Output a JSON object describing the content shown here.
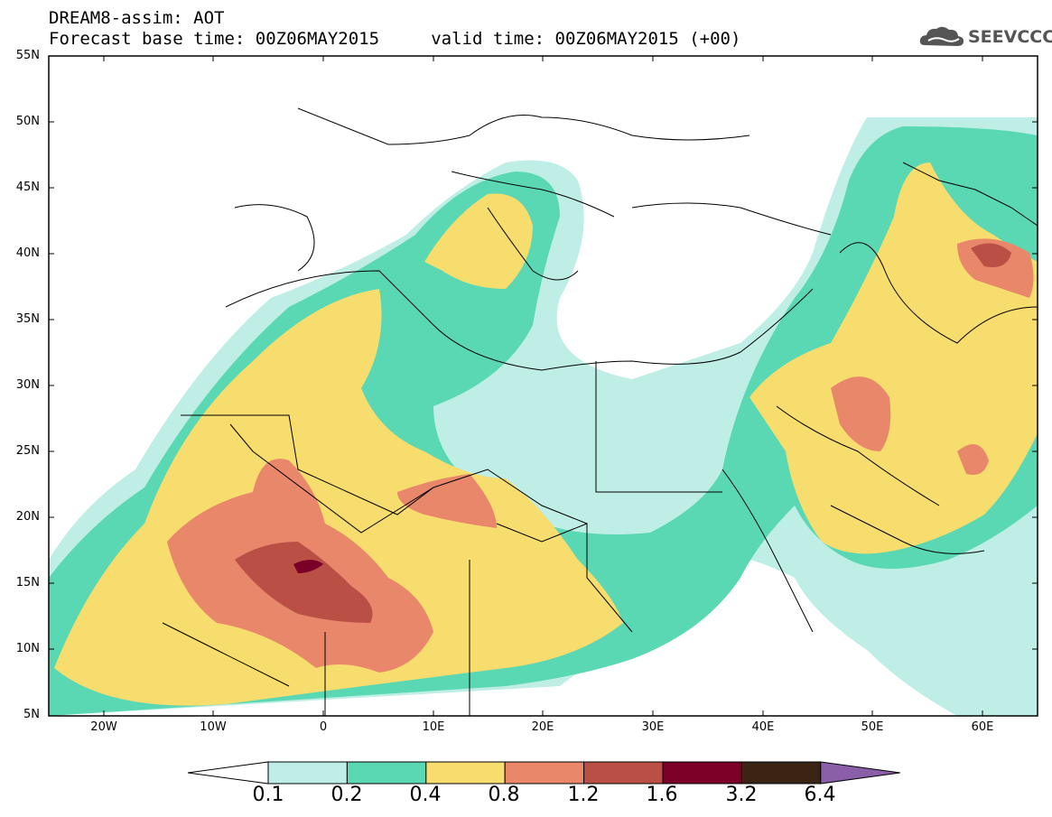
{
  "title_line1": "DREAM8-assim: AOT",
  "title_line2": "Forecast base time: 00Z06MAY2015     valid time: 00Z06MAY2015 (+00)",
  "logo_text": "SEEVCCC",
  "logo_icon": "cloud-icon",
  "map": {
    "lon_range": [
      -25,
      65
    ],
    "lat_range": [
      5,
      55
    ],
    "lat_ticks": [
      "55N",
      "50N",
      "45N",
      "40N",
      "35N",
      "30N",
      "25N",
      "20N",
      "15N",
      "10N",
      "5N"
    ],
    "lon_ticks": [
      "20W",
      "10W",
      "0",
      "10E",
      "20E",
      "30E",
      "40E",
      "50E",
      "60E"
    ]
  },
  "colorbar": {
    "labels": [
      "0.1",
      "0.2",
      "0.4",
      "0.8",
      "1.2",
      "1.6",
      "3.2",
      "6.4"
    ],
    "colors": [
      "#ffffff",
      "#bfeee6",
      "#5ad8b4",
      "#f7dc6e",
      "#e9876b",
      "#b94f45",
      "#7a0028",
      "#3b2414",
      "#8a5fa8"
    ]
  }
}
